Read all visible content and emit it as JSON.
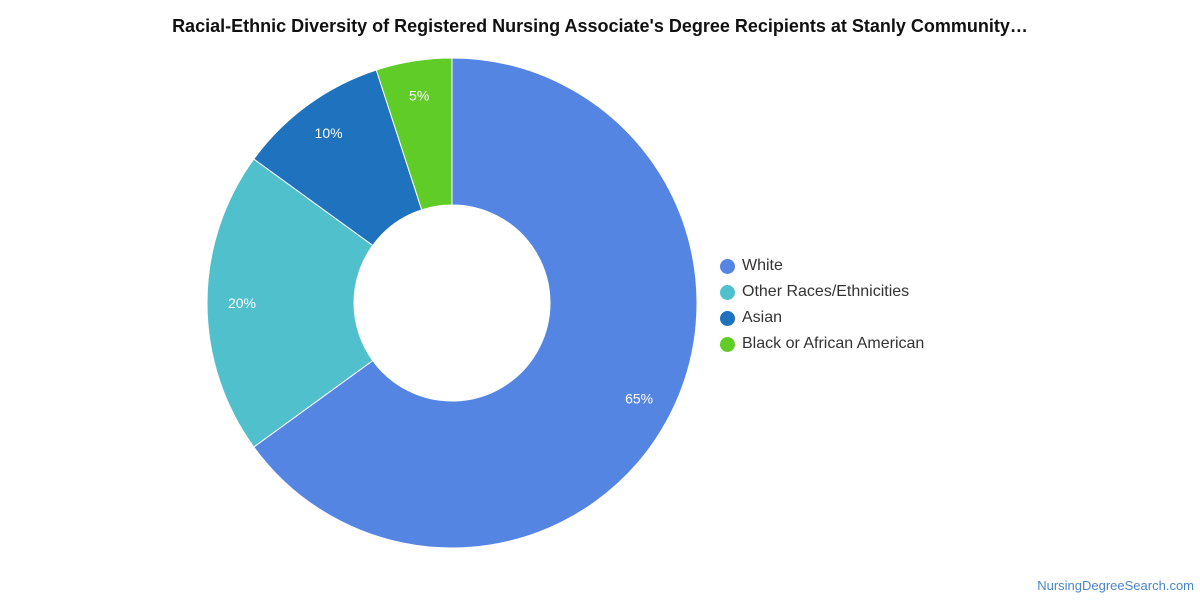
{
  "chart_data": {
    "type": "pie",
    "title": "Racial-Ethnic Diversity of Registered Nursing Associate's Degree Recipients at Stanly Community…",
    "donut": true,
    "slices": [
      {
        "label": "White",
        "value": 65,
        "value_label": "65%",
        "color": "#5585e2"
      },
      {
        "label": "Other Races/Ethnicities",
        "value": 20,
        "value_label": "20%",
        "color": "#50c0cc"
      },
      {
        "label": "Asian",
        "value": 10,
        "value_label": "10%",
        "color": "#1f72bd"
      },
      {
        "label": "Black or African American",
        "value": 5,
        "value_label": "5%",
        "color": "#5fcc28"
      }
    ],
    "legend_position": "right"
  },
  "source": "NursingDegreeSearch.com"
}
